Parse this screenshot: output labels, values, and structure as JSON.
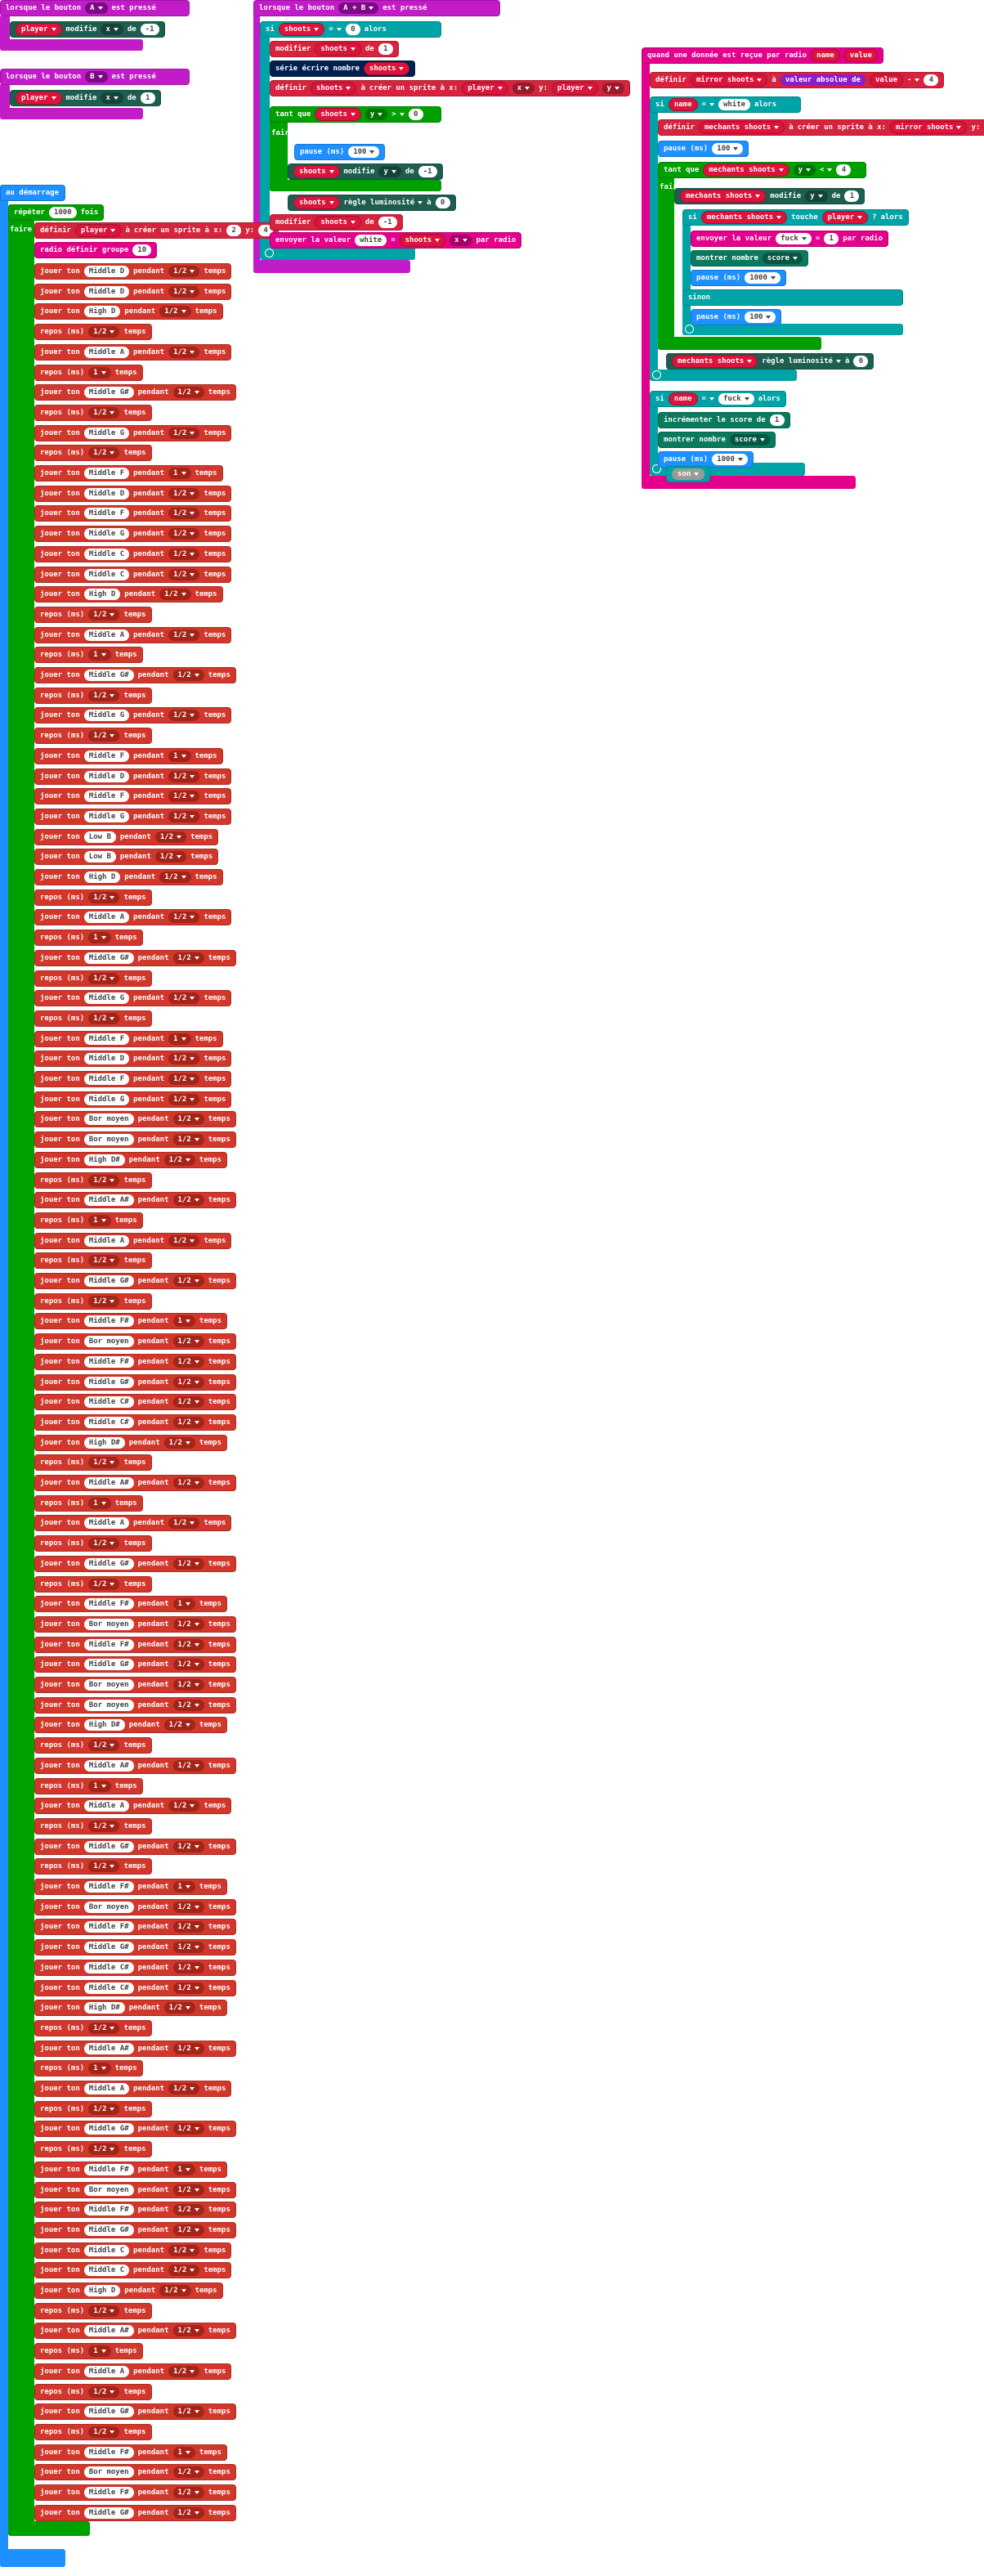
{
  "labels": {
    "play": "jouer ton",
    "during": "pendant",
    "beats": "temps",
    "rest": "repos (ms)"
  },
  "block_a": {
    "event": "lorsque le bouton",
    "button": "A",
    "pressed": "est pressé",
    "sprite": "player",
    "action": "modifie",
    "axis": "x",
    "by": "de",
    "amount": -1
  },
  "block_b": {
    "event": "lorsque le bouton",
    "button": "B",
    "pressed": "est pressé",
    "sprite": "player",
    "action": "modifie",
    "axis": "x",
    "by": "de",
    "amount": 1
  },
  "start": {
    "event": "au démarrage",
    "repeat": "répéter",
    "count": 1000,
    "times": "fois",
    "do": "faire",
    "set": "définir",
    "var": "player",
    "to": "à",
    "create": "créer un sprite à x:",
    "x": 2,
    "y_label": "y:",
    "y": 4,
    "radio": "radio définir groupe",
    "group": 10
  },
  "block_ab": {
    "event": "lorsque le bouton",
    "button": "A + B",
    "pressed": "est pressé",
    "if": "si",
    "var": "shoots",
    "eq": "=",
    "zero": 0,
    "then": "alors",
    "change": "modifier",
    "by": "de",
    "one": 1,
    "serial": "série écrire nombre",
    "set": "définir",
    "to": "à",
    "create": "créer un sprite à x:",
    "player": "player",
    "x": "x",
    "y_label": "y:",
    "y": "y",
    "while": "tant que",
    "gt": ">",
    "do": "faire",
    "pause": "pause (ms)",
    "pause_ms": 100,
    "move": "modifie",
    "minus_one": -1,
    "brightness": "règle luminosité",
    "send": "envoyer la valeur",
    "key": "white",
    "over_radio": "par radio"
  },
  "block_radio": {
    "event": "quand une donnée est reçue par radio",
    "name": "name",
    "value": "value",
    "set": "définir",
    "mirror": "mirror shoots",
    "to": "à",
    "abs": "valeur absolue de",
    "minus": "-",
    "four": 4,
    "if": "si",
    "eq": "=",
    "white": "white",
    "then": "alors",
    "pause": "pause (ms)",
    "pause_ms": 100,
    "mechants": "mechants shoots",
    "create": "créer un sprite à x:",
    "y_label": "y:",
    "zero": 0,
    "while": "tant que",
    "y": "y",
    "lt": "<",
    "do": "faire",
    "move": "modifie",
    "by": "de",
    "one": 1,
    "touch": "touche",
    "player": "player",
    "q": "?",
    "send": "envoyer la valeur",
    "fuck": "fuck",
    "over_radio": "par radio",
    "show": "montrer nombre",
    "score": "score",
    "long_pause": 1000,
    "else": "sinon",
    "brightness": "règle luminosité",
    "increment": "incrémenter le score de",
    "sound": "son"
  },
  "notes": [
    {
      "note": "Middle D",
      "beats": "1/2"
    },
    {
      "note": "Middle D",
      "beats": "1/2"
    },
    {
      "note": "High D",
      "beats": "1/2"
    },
    {
      "rest": "1/2"
    },
    {
      "note": "Middle A",
      "beats": "1/2"
    },
    {
      "rest": 1
    },
    {
      "note": "Middle G#",
      "beats": "1/2"
    },
    {
      "rest": "1/2"
    },
    {
      "note": "Middle G",
      "beats": "1/2"
    },
    {
      "rest": "1/2"
    },
    {
      "note": "Middle F",
      "beats": 1
    },
    {
      "note": "Middle D",
      "beats": "1/2"
    },
    {
      "note": "Middle F",
      "beats": "1/2"
    },
    {
      "note": "Middle G",
      "beats": "1/2"
    },
    {
      "note": "Middle C",
      "beats": "1/2"
    },
    {
      "note": "Middle C",
      "beats": "1/2"
    },
    {
      "note": "High D",
      "beats": "1/2"
    },
    {
      "rest": "1/2"
    },
    {
      "note": "Middle A",
      "beats": "1/2"
    },
    {
      "rest": 1
    },
    {
      "note": "Middle G#",
      "beats": "1/2"
    },
    {
      "rest": "1/2"
    },
    {
      "note": "Middle G",
      "beats": "1/2"
    },
    {
      "rest": "1/2"
    },
    {
      "note": "Middle F",
      "beats": 1
    },
    {
      "note": "Middle D",
      "beats": "1/2"
    },
    {
      "note": "Middle F",
      "beats": "1/2"
    },
    {
      "note": "Middle G",
      "beats": "1/2"
    },
    {
      "note": "Low B",
      "beats": "1/2"
    },
    {
      "note": "Low B",
      "beats": "1/2"
    },
    {
      "note": "High D",
      "beats": "1/2"
    },
    {
      "rest": "1/2"
    },
    {
      "note": "Middle A",
      "beats": "1/2"
    },
    {
      "rest": 1
    },
    {
      "note": "Middle G#",
      "beats": "1/2"
    },
    {
      "rest": "1/2"
    },
    {
      "note": "Middle G",
      "beats": "1/2"
    },
    {
      "rest": "1/2"
    },
    {
      "note": "Middle F",
      "beats": 1
    },
    {
      "note": "Middle D",
      "beats": "1/2"
    },
    {
      "note": "Middle F",
      "beats": "1/2"
    },
    {
      "note": "Middle G",
      "beats": "1/2"
    },
    {
      "note": "Bor moyen",
      "beats": "1/2"
    },
    {
      "note": "Bor moyen",
      "beats": "1/2"
    },
    {
      "note": "High D#",
      "beats": "1/2"
    },
    {
      "rest": "1/2"
    },
    {
      "note": "Middle A#",
      "beats": "1/2"
    },
    {
      "rest": 1
    },
    {
      "note": "Middle A",
      "beats": "1/2"
    },
    {
      "rest": "1/2"
    },
    {
      "note": "Middle G#",
      "beats": "1/2"
    },
    {
      "rest": "1/2"
    },
    {
      "note": "Middle F#",
      "beats": 1
    },
    {
      "note": "Bor moyen",
      "beats": "1/2"
    },
    {
      "note": "Middle F#",
      "beats": "1/2"
    },
    {
      "note": "Middle G#",
      "beats": "1/2"
    },
    {
      "note": "Middle C#",
      "beats": "1/2"
    },
    {
      "note": "Middle C#",
      "beats": "1/2"
    },
    {
      "note": "High D#",
      "beats": "1/2"
    },
    {
      "rest": "1/2"
    },
    {
      "note": "Middle A#",
      "beats": "1/2"
    },
    {
      "rest": 1
    },
    {
      "note": "Middle A",
      "beats": "1/2"
    },
    {
      "rest": "1/2"
    },
    {
      "note": "Middle G#",
      "beats": "1/2"
    },
    {
      "rest": "1/2"
    },
    {
      "note": "Middle F#",
      "beats": 1
    },
    {
      "note": "Bor moyen",
      "beats": "1/2"
    },
    {
      "note": "Middle F#",
      "beats": "1/2"
    },
    {
      "note": "Middle G#",
      "beats": "1/2"
    },
    {
      "note": "Bor moyen",
      "beats": "1/2"
    },
    {
      "note": "Bor moyen",
      "beats": "1/2"
    },
    {
      "note": "High D#",
      "beats": "1/2"
    },
    {
      "rest": "1/2"
    },
    {
      "note": "Middle A#",
      "beats": "1/2"
    },
    {
      "rest": 1
    },
    {
      "note": "Middle A",
      "beats": "1/2"
    },
    {
      "rest": "1/2"
    },
    {
      "note": "Middle G#",
      "beats": "1/2"
    },
    {
      "rest": "1/2"
    },
    {
      "note": "Middle F#",
      "beats": 1
    },
    {
      "note": "Bor moyen",
      "beats": "1/2"
    },
    {
      "note": "Middle F#",
      "beats": "1/2"
    },
    {
      "note": "Middle G#",
      "beats": "1/2"
    },
    {
      "note": "Middle C#",
      "beats": "1/2"
    },
    {
      "note": "Middle C#",
      "beats": "1/2"
    },
    {
      "note": "High D#",
      "beats": "1/2"
    },
    {
      "rest": "1/2"
    },
    {
      "note": "Middle A#",
      "beats": "1/2"
    },
    {
      "rest": 1
    },
    {
      "note": "Middle A",
      "beats": "1/2"
    },
    {
      "rest": "1/2"
    },
    {
      "note": "Middle G#",
      "beats": "1/2"
    },
    {
      "rest": "1/2"
    },
    {
      "note": "Middle F#",
      "beats": 1
    },
    {
      "note": "Bor moyen",
      "beats": "1/2"
    },
    {
      "note": "Middle F#",
      "beats": "1/2"
    },
    {
      "note": "Middle G#",
      "beats": "1/2"
    },
    {
      "note": "Middle C",
      "beats": "1/2"
    },
    {
      "note": "Middle C",
      "beats": "1/2"
    },
    {
      "note": "High D",
      "beats": "1/2"
    },
    {
      "rest": "1/2"
    },
    {
      "note": "Middle A#",
      "beats": "1/2"
    },
    {
      "rest": 1
    },
    {
      "note": "Middle A",
      "beats": "1/2"
    },
    {
      "rest": "1/2"
    },
    {
      "note": "Middle G#",
      "beats": "1/2"
    },
    {
      "rest": "1/2"
    },
    {
      "note": "Middle F#",
      "beats": 1
    },
    {
      "note": "Bor moyen",
      "beats": "1/2"
    },
    {
      "note": "Middle F#",
      "beats": "1/2"
    },
    {
      "note": "Middle G#",
      "beats": "1/2"
    }
  ]
}
